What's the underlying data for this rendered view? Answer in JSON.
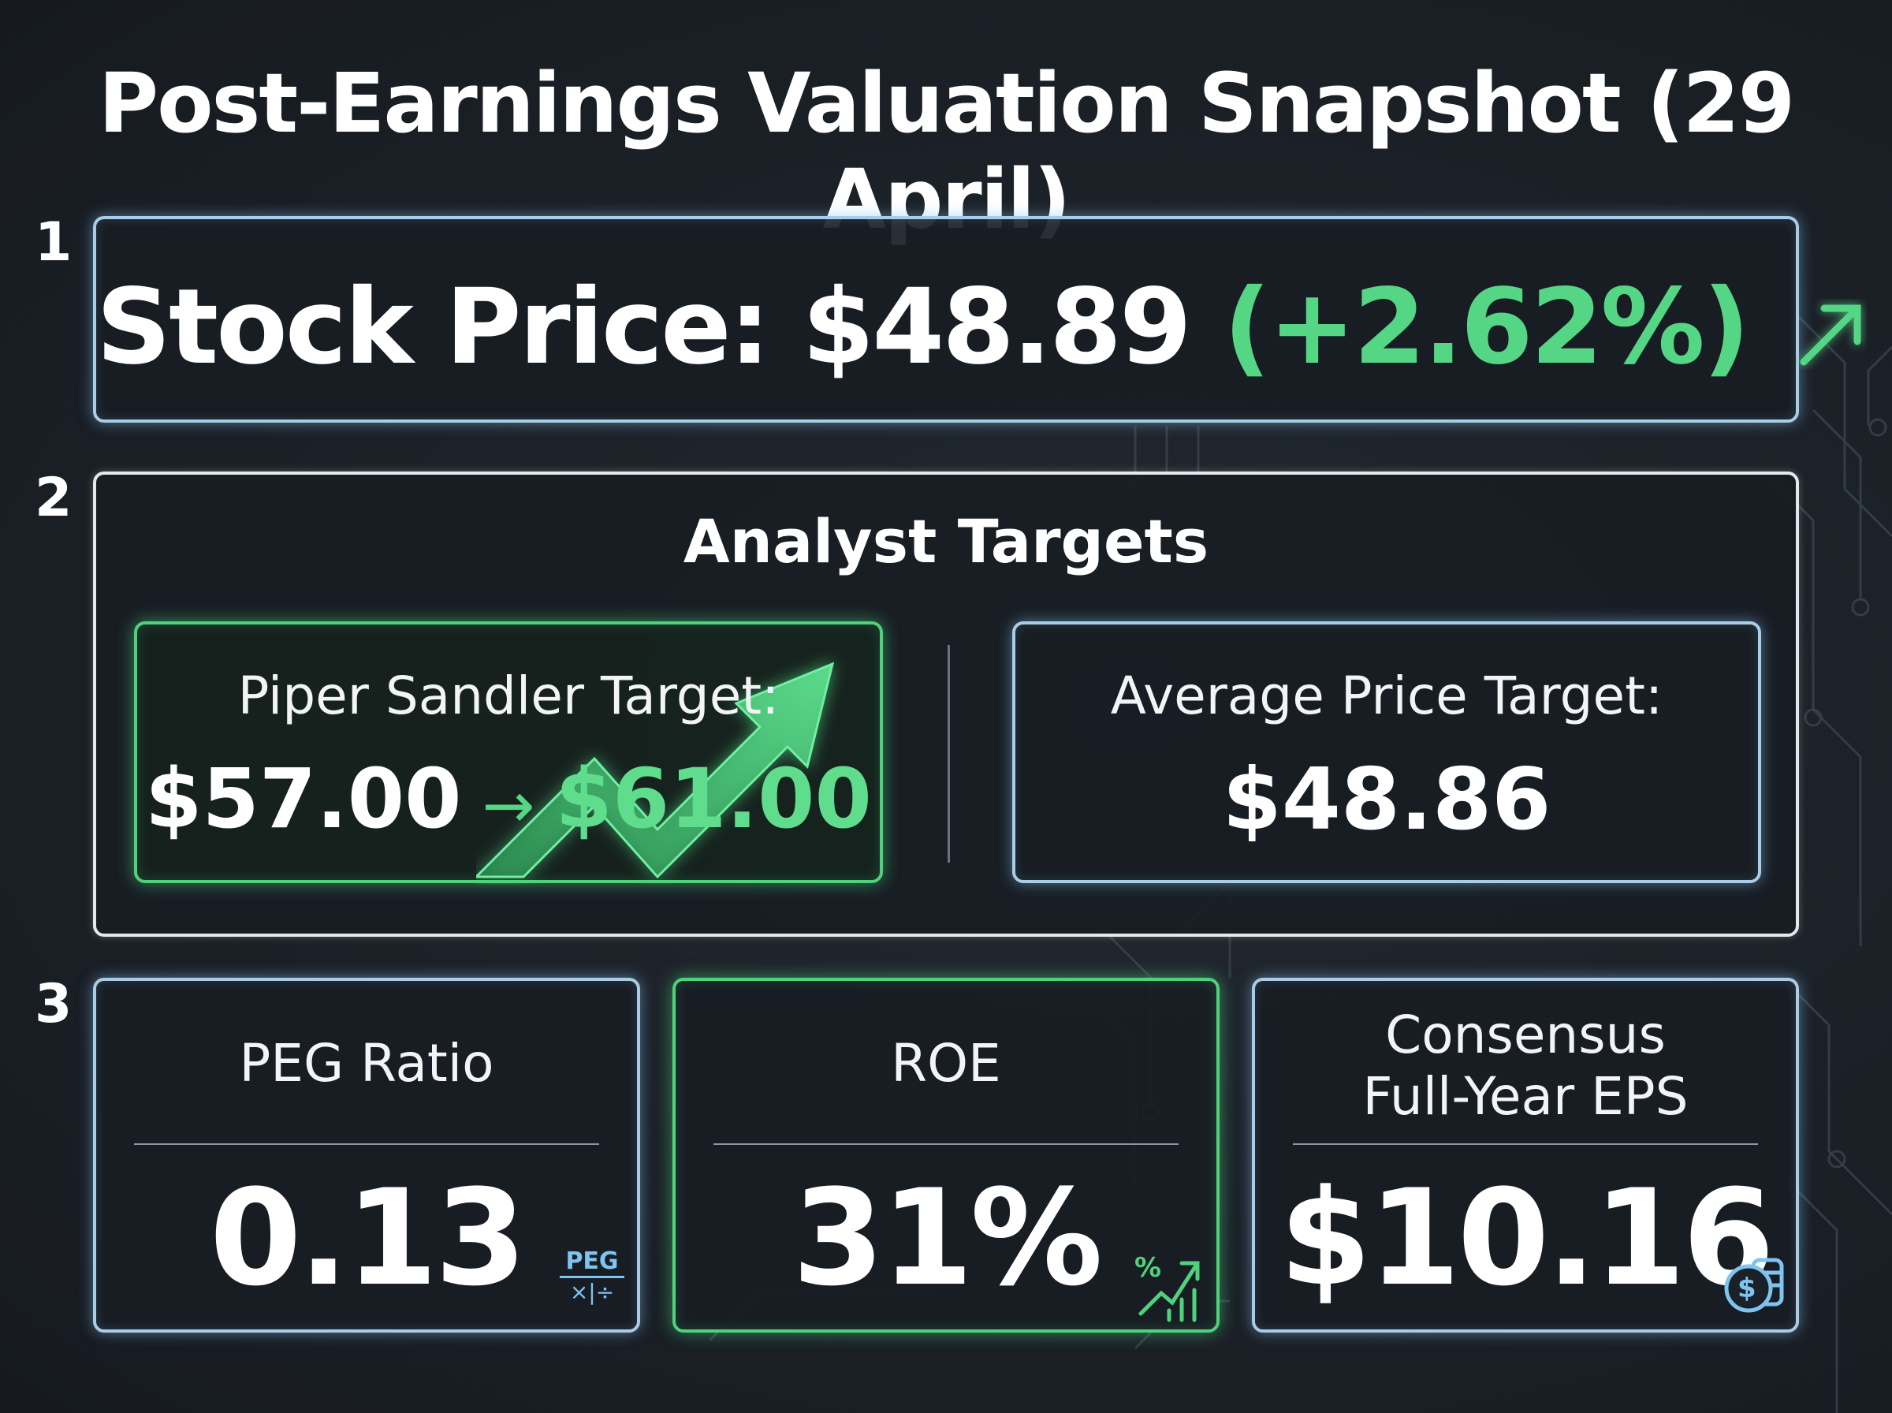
{
  "title": "Post-Earnings Valuation Snapshot (29 April)",
  "sections": [
    {
      "number": "1"
    },
    {
      "number": "2"
    },
    {
      "number": "3"
    }
  ],
  "stock": {
    "label": "Stock Price:",
    "price": "$48.89",
    "change": "(+2.62%)",
    "arrow_icon": "arrow-up-right-icon"
  },
  "analyst_targets": {
    "title": "Analyst Targets",
    "piper": {
      "label": "Piper Sandler Target:",
      "old_value": "$57.00",
      "separator": "→",
      "new_value": "$61.00",
      "icon": "trend-up-arrow-icon"
    },
    "average": {
      "label": "Average Price Target:",
      "value": "$48.86"
    }
  },
  "metrics": [
    {
      "label": "PEG Ratio",
      "value": "0.13",
      "icon": "peg-calculator-icon",
      "icon_text": "PEG",
      "icon_ops": "×|÷"
    },
    {
      "label": "ROE",
      "value": "31%",
      "icon": "percent-growth-icon",
      "icon_text": "%"
    },
    {
      "label_line1": "Consensus",
      "label_line2": "Full-Year EPS",
      "value": "$10.16",
      "icon": "dollar-coins-icon",
      "icon_text": "$"
    }
  ],
  "colors": {
    "background": "#1b2027",
    "accent_green": "#55d685",
    "border_blue": "#a9cde6",
    "border_white": "#e6e9ec"
  }
}
